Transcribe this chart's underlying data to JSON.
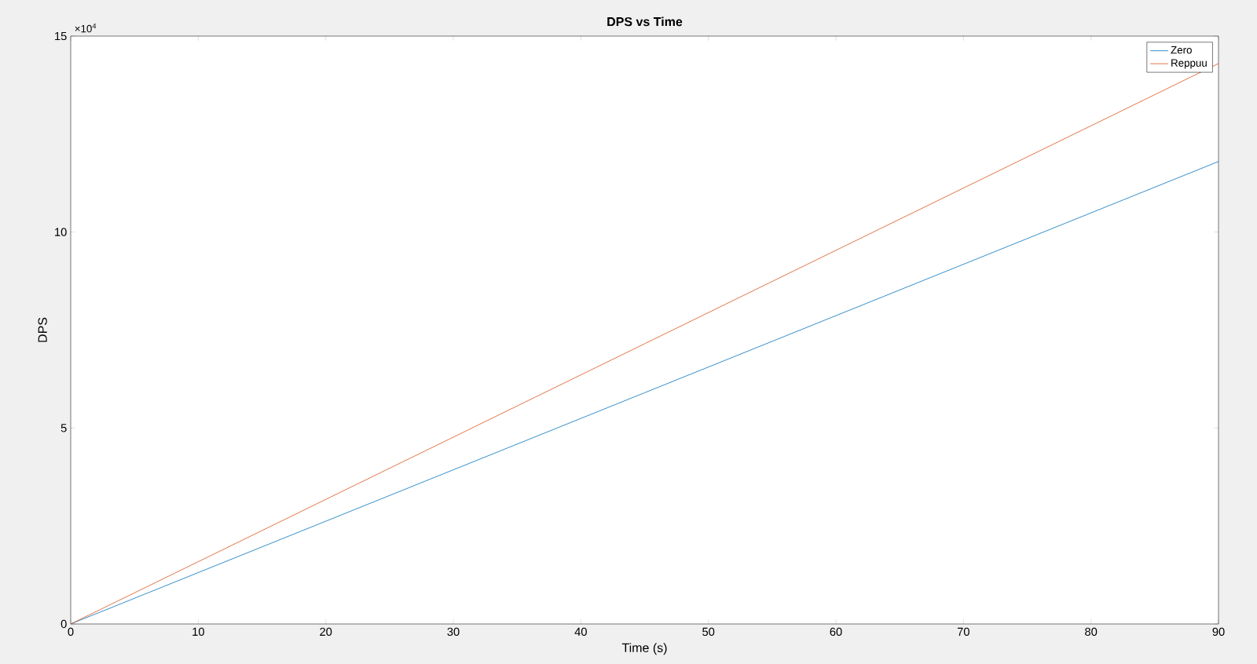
{
  "chart_data": {
    "type": "line",
    "title": "DPS vs Time",
    "xlabel": "Time (s)",
    "ylabel": "DPS",
    "series": [
      {
        "name": "Zero",
        "color": "#0072bd",
        "x": [
          0,
          45,
          90
        ],
        "values": [
          0,
          5.9,
          11.8
        ]
      },
      {
        "name": "Reppuu",
        "color": "#d95319",
        "x": [
          0,
          45,
          90
        ],
        "values": [
          0,
          7.15,
          14.3
        ]
      }
    ],
    "xlim": [
      0,
      90
    ],
    "xticks": [
      0,
      10,
      20,
      30,
      40,
      50,
      60,
      70,
      80,
      90
    ],
    "ylim": [
      0,
      15
    ],
    "yticks": [
      0,
      5,
      10,
      15
    ],
    "annotations": [
      "×10$^{4}$"
    ],
    "legend": "top right",
    "grid": false,
    "marker": "none",
    "line_style": "solid"
  }
}
